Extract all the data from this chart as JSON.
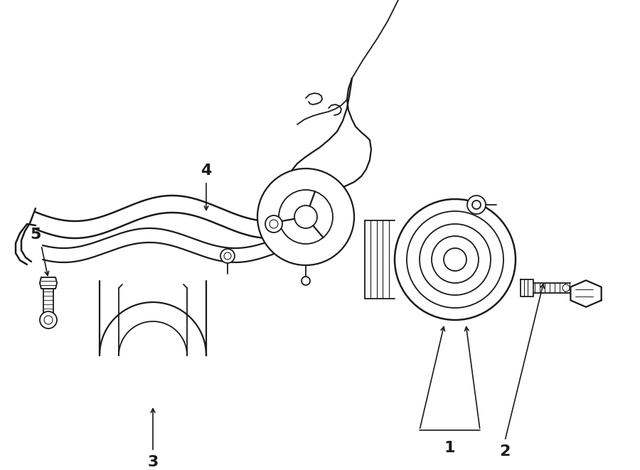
{
  "bg_color": "#ffffff",
  "line_color": "#1a1a1a",
  "label_color": "#000000",
  "font_size_labels": 14,
  "figsize": [
    9.0,
    6.61
  ],
  "dpi": 100
}
